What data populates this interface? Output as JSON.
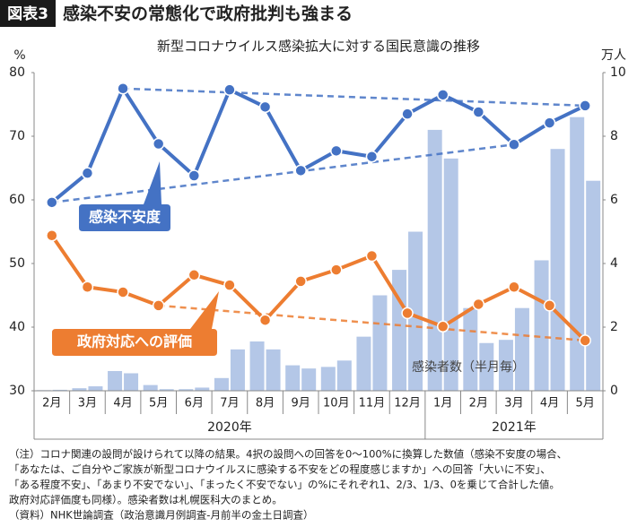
{
  "chart_data": {
    "type": "bar-line",
    "badge": "図表3",
    "title": "感染不安の常態化で政府批判も強まる",
    "subtitle": "新型コロナウイルス感染拡大に対する国民意識の推移",
    "y_unit": "%",
    "y2_unit": "万人",
    "categories": [
      "2月",
      "3月",
      "4月",
      "5月",
      "6月",
      "7月",
      "8月",
      "9月",
      "10月",
      "11月",
      "12月",
      "1月",
      "2月",
      "3月",
      "4月",
      "5月"
    ],
    "year_labels": [
      "2020年",
      "2021年"
    ],
    "ylim": [
      30,
      80
    ],
    "yticks": [
      30,
      40,
      50,
      60,
      70,
      80
    ],
    "y2lim": [
      0,
      10
    ],
    "y2ticks": [
      0,
      2,
      4,
      6,
      8,
      10
    ],
    "series": [
      {
        "name": "感染者数（半月毎）",
        "type": "bar",
        "axis": "y2",
        "color": "#b4c7e7",
        "values": [
          [
            0.02,
            0.03
          ],
          [
            0.08,
            0.14
          ],
          [
            0.62,
            0.55
          ],
          [
            0.18,
            0.05
          ],
          [
            0.05,
            0.1
          ],
          [
            0.4,
            1.3
          ],
          [
            1.55,
            1.3
          ],
          [
            0.8,
            0.7
          ],
          [
            0.75,
            0.95
          ],
          [
            1.7,
            3.0
          ],
          [
            3.8,
            5.0
          ],
          [
            8.2,
            7.3
          ],
          [
            2.6,
            1.5
          ],
          [
            1.6,
            2.6
          ],
          [
            4.1,
            7.6
          ],
          [
            8.6,
            6.6
          ]
        ]
      },
      {
        "name": "感染不安度",
        "type": "line",
        "axis": "y",
        "color": "#4472c4",
        "values": [
          59.6,
          64.2,
          77.5,
          68.8,
          63.8,
          77.3,
          74.6,
          64.6,
          67.7,
          66.8,
          73.5,
          76.5,
          73.8,
          68.7,
          72.1,
          74.8
        ]
      },
      {
        "name": "政府対応への評価",
        "type": "line",
        "axis": "y",
        "color": "#ed7d31",
        "values": [
          54.4,
          46.3,
          45.5,
          43.4,
          48.2,
          46.6,
          41.1,
          47.2,
          49.0,
          51.2,
          42.2,
          40.1,
          43.6,
          46.3,
          43.4,
          37.9
        ]
      }
    ],
    "notes": [
      "（注）コロナ関連の設問が設けられて以降の結果。4択の設問への回答を0～100%に換算した数値（感染不安度の場合、",
      "「あなたは、ご自分やご家族が新型コロナウイルスに感染する不安をどの程度感じますか」への回答「大いに不安」、",
      "「ある程度不安」、「あまり不安でない」、「まったく不安でない」の%にそれぞれ1、2/3、1/3、0を乗じて合計した値。",
      "政府対応評価度も同様）。感染者数は札幌医科大のまとめ。",
      "（資料）NHK世論調査（政治意識月例調査-月前半の金土日調査）"
    ]
  }
}
